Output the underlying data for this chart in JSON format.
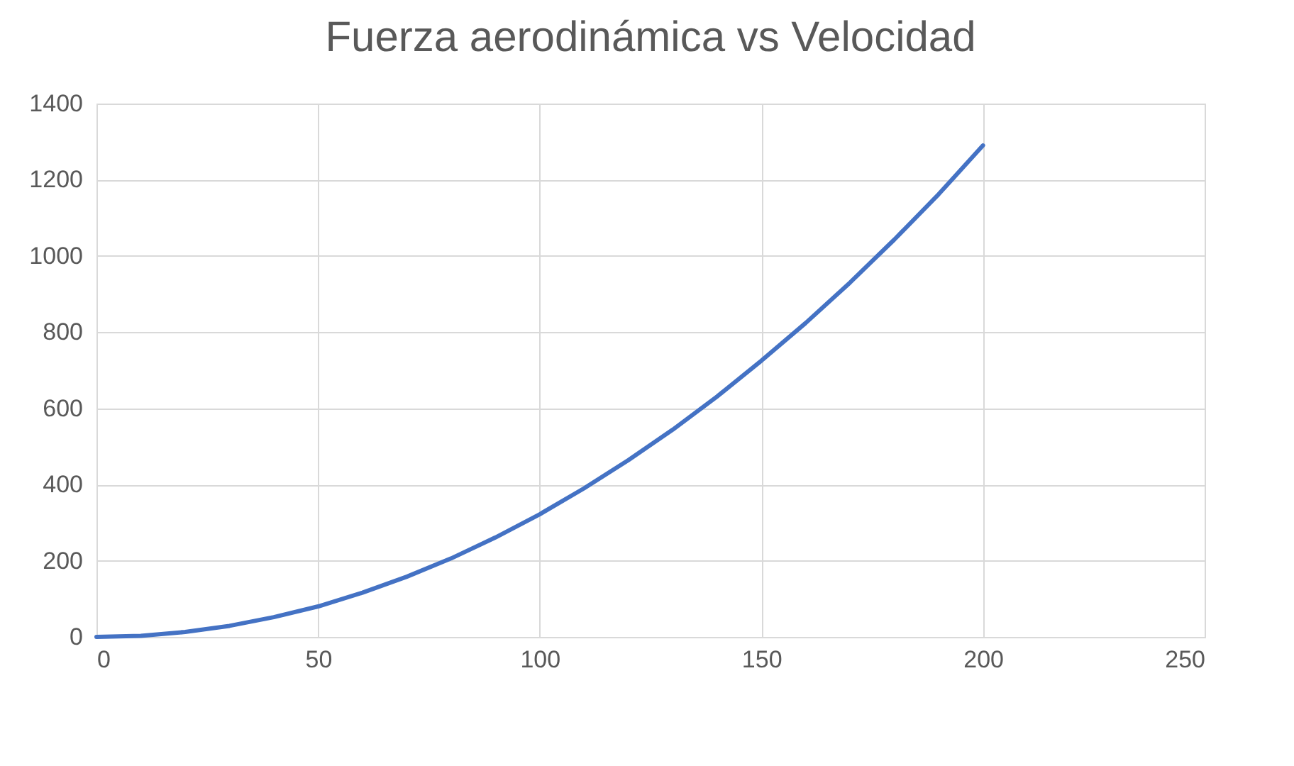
{
  "chart_data": {
    "type": "line",
    "title": "Fuerza aerodinámica vs Velocidad",
    "x": [
      0,
      10,
      20,
      30,
      40,
      50,
      60,
      70,
      80,
      90,
      100,
      110,
      120,
      130,
      140,
      150,
      160,
      170,
      180,
      190,
      200
    ],
    "series": [
      {
        "color": "#4472c4",
        "values": [
          0,
          3,
          13,
          29,
          52,
          80,
          116,
          158,
          206,
          261,
          322,
          390,
          464,
          544,
          631,
          725,
          824,
          930,
          1043,
          1162,
          1290
        ]
      }
    ],
    "xlim": [
      0,
      250
    ],
    "xticks": [
      0,
      50,
      100,
      150,
      200,
      250
    ],
    "ylim": [
      0,
      1400
    ],
    "yticks": [
      0,
      200,
      400,
      600,
      800,
      1000,
      1200,
      1400
    ],
    "grid": true,
    "marker": "none",
    "line_style": "solid",
    "legend": false
  }
}
